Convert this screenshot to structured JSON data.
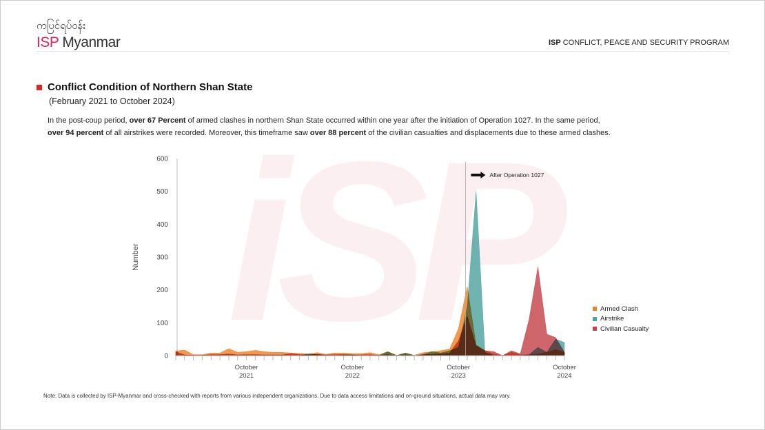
{
  "header": {
    "logo_burmese": "ကပြင်ရပ်ဝန်း",
    "logo_isp": "ISP",
    "logo_myanmar": "Myanmar",
    "program_bold": "ISP",
    "program_rest": " CONFLICT, PEACE AND SECURITY PROGRAM"
  },
  "section": {
    "title": "Conflict Condition of Northern Shan State",
    "subtitle": "(February 2021 to October 2024)",
    "desc_parts": [
      "In the post-coup period, ",
      "over 67 Percent",
      " of armed clashes in northern Shan State occurred within one year after the initiation of Operation 1027. In the same period, ",
      "over 94 percent",
      " of all airstrikes were recorded. Moreover, this timeframe saw ",
      "over 88 percent",
      " of the civilian casualties and displacements due to these armed clashes."
    ]
  },
  "watermark": "iSP",
  "note": "Note: Data is collected by ISP-Myanmar and cross-checked with reports from various independent organizations. Due to data access limitations and on-ground situations, actual data may vary.",
  "chart_data": {
    "type": "area",
    "title": "",
    "xlabel": "",
    "ylabel": "Number",
    "ylim": [
      0,
      600
    ],
    "yticks": [
      0,
      100,
      200,
      300,
      400,
      500,
      600
    ],
    "x_start": "February 2021",
    "x_end": "October 2024",
    "n_months": 45,
    "xtick_labels": [
      {
        "index": 8,
        "line1": "October",
        "line2": "2021"
      },
      {
        "index": 20,
        "line1": "October",
        "line2": "2022"
      },
      {
        "index": 32,
        "line1": "October",
        "line2": "2023"
      },
      {
        "index": 44,
        "line1": "October",
        "line2": "2024"
      }
    ],
    "annotation": {
      "text": "After Operation 1027",
      "index": 32.8
    },
    "legend_position": "right",
    "series": [
      {
        "name": "Armed Clash",
        "color": "#f08226",
        "values": [
          14,
          17,
          3,
          3,
          8,
          8,
          21,
          10,
          12,
          16,
          12,
          10,
          10,
          8,
          7,
          5,
          9,
          4,
          8,
          8,
          6,
          6,
          9,
          3,
          12,
          1,
          8,
          1,
          9,
          12,
          15,
          20,
          82,
          210,
          33,
          15,
          5,
          0,
          10,
          3,
          2,
          5,
          10,
          18,
          10
        ]
      },
      {
        "name": "Airstrike",
        "color": "#4fa3a0",
        "values": [
          0,
          0,
          0,
          0,
          0,
          0,
          0,
          0,
          0,
          0,
          0,
          0,
          0,
          0,
          0,
          5,
          3,
          0,
          0,
          2,
          2,
          0,
          0,
          0,
          12,
          0,
          8,
          0,
          3,
          12,
          8,
          15,
          25,
          150,
          500,
          10,
          0,
          0,
          0,
          0,
          3,
          25,
          10,
          50,
          40
        ]
      },
      {
        "name": "Civilian Casualty",
        "color": "#c4444c",
        "values": [
          12,
          2,
          1,
          1,
          3,
          3,
          5,
          2,
          3,
          3,
          2,
          2,
          2,
          6,
          3,
          2,
          4,
          2,
          3,
          3,
          2,
          2,
          3,
          1,
          3,
          0,
          2,
          0,
          3,
          4,
          5,
          8,
          45,
          120,
          30,
          15,
          12,
          0,
          15,
          5,
          110,
          270,
          65,
          55,
          10
        ]
      }
    ]
  }
}
